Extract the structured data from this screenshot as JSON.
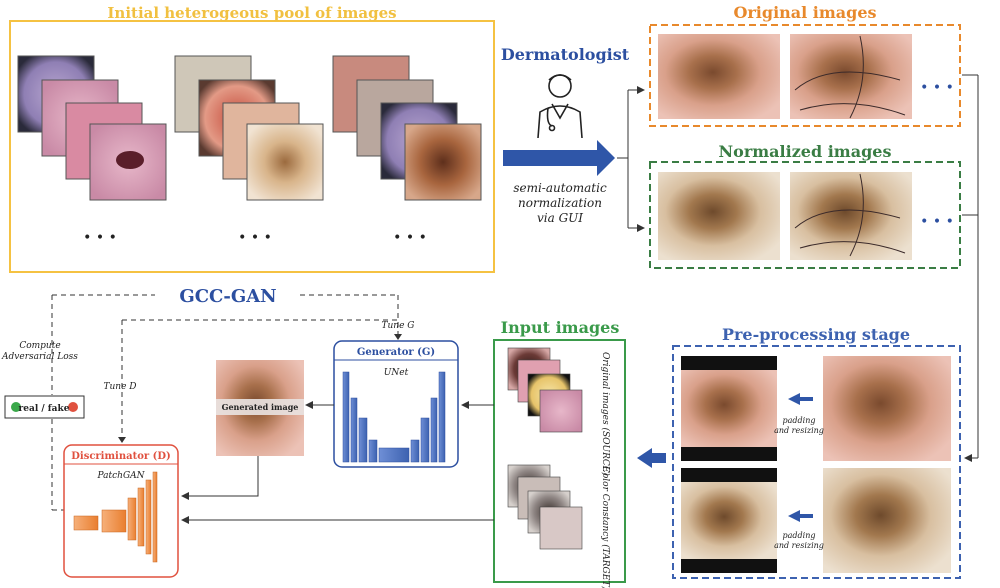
{
  "pool": {
    "title": "Initial heterogeous pool of images",
    "ellipsis": "• • •",
    "colors": {
      "border": "#f5c242",
      "title": "#f1c040"
    }
  },
  "dermatologist": {
    "title": "Dermatologist",
    "caption_lines": [
      "semi-automatic",
      "normalization",
      "via GUI"
    ],
    "icon": "doctor-icon"
  },
  "original": {
    "title": "Original images",
    "ellipsis": "• • •",
    "color": "#e8892c"
  },
  "normalized": {
    "title": "Normalized images",
    "ellipsis": "• • •",
    "color": "#3a7d44"
  },
  "preprocessing": {
    "title": "Pre-processing stage",
    "step_lines": [
      "padding",
      "and resizing"
    ],
    "color": "#3d62b0"
  },
  "input": {
    "title": "Input images",
    "source_label": "Original images (SOURCE)",
    "target_label": "Color Constancy (TARGET)",
    "color": "#3a9a4a"
  },
  "gan": {
    "title": "GCC-GAN",
    "compute_loss_lines": [
      "Compute",
      "Adversarial Loss"
    ],
    "tune_d": "Tune D",
    "tune_g": "Tune G",
    "real_fake": "real / fake",
    "generator": {
      "title": "Generator (G)",
      "subtitle": "UNet"
    },
    "discriminator": {
      "title": "Discriminator (D)",
      "subtitle": "PatchGAN"
    },
    "generated_label": "Generated image",
    "color": "#2c4fa0"
  },
  "palette": {
    "blue": "#3d62b0",
    "orange": "#f08a3c",
    "red": "#e0513f",
    "green": "#3aa84a"
  }
}
